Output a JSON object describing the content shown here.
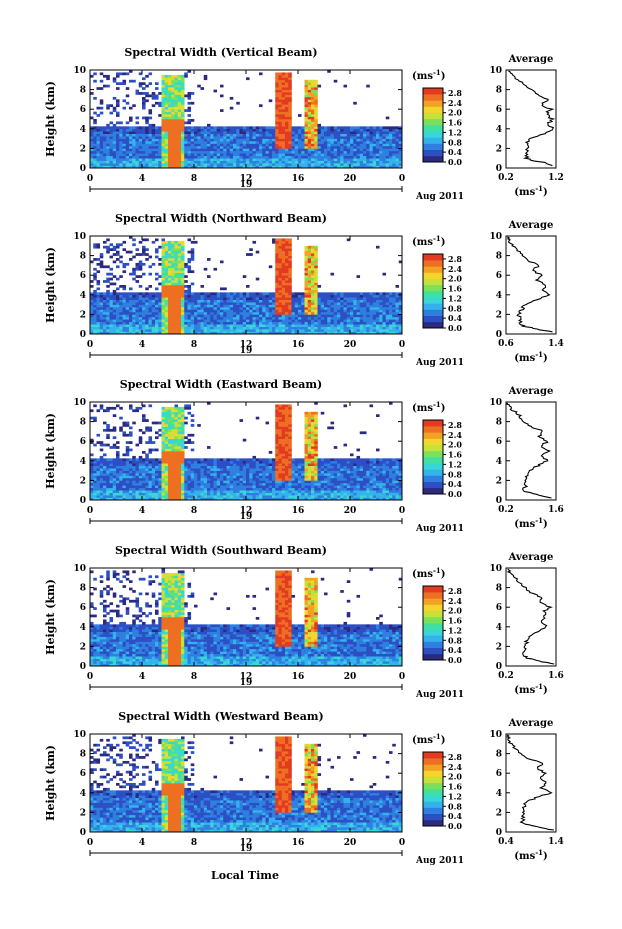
{
  "figure": {
    "xlabel": "Local Time",
    "date_label": "Aug 2011",
    "day_label": "19",
    "colorbar_unit": "(ms",
    "unit_exponent": "-1",
    "unit_close": ")",
    "avg_title": "Average",
    "avg_xlabel_open": "(ms",
    "avg_xlabel_close": ")",
    "colormap": [
      "#2b2a80",
      "#2d4fc4",
      "#2e7fe0",
      "#33b2ec",
      "#39d6d8",
      "#3fe0a0",
      "#7be05a",
      "#c6e23a",
      "#f2d62c",
      "#f4a225",
      "#ee6f22",
      "#e23b22"
    ]
  },
  "chart_data": [
    {
      "type": "heatmap",
      "title": "Spectral Width (Vertical Beam)",
      "ylabel": "Height (km)",
      "x_ticks": [
        "0",
        "4",
        "8",
        "12",
        "16",
        "20",
        "0"
      ],
      "y_ticks": [
        "0",
        "2",
        "4",
        "6",
        "8",
        "10"
      ],
      "xlim": [
        0,
        24
      ],
      "ylim": [
        0,
        10
      ],
      "colorbar_ticks": [
        "0.0",
        "0.4",
        "0.8",
        "1.2",
        "1.6",
        "2.0",
        "2.4",
        "2.8"
      ],
      "colorbar_range": [
        0,
        3.0
      ],
      "profile": {
        "type": "line",
        "title": "Average",
        "x_ticks": [
          "0.2",
          "1.2"
        ],
        "xlim": [
          0.2,
          1.2
        ],
        "y_ticks": [
          "0",
          "2",
          "4",
          "6",
          "8",
          "10"
        ],
        "ylim": [
          0,
          10
        ],
        "points": [
          [
            1.15,
            0.2
          ],
          [
            1.02,
            0.5
          ],
          [
            0.72,
            0.8
          ],
          [
            0.62,
            1.0
          ],
          [
            0.6,
            1.5
          ],
          [
            0.62,
            2.0
          ],
          [
            0.6,
            2.5
          ],
          [
            0.7,
            3.0
          ],
          [
            0.95,
            3.5
          ],
          [
            1.15,
            4.0
          ],
          [
            1.05,
            4.5
          ],
          [
            1.12,
            5.0
          ],
          [
            1.0,
            5.5
          ],
          [
            1.1,
            6.0
          ],
          [
            0.9,
            6.5
          ],
          [
            1.05,
            7.0
          ],
          [
            0.8,
            7.5
          ],
          [
            0.7,
            8.0
          ],
          [
            0.6,
            8.5
          ],
          [
            0.45,
            9.0
          ],
          [
            0.3,
            9.5
          ],
          [
            0.25,
            9.9
          ]
        ]
      }
    },
    {
      "type": "heatmap",
      "title": "Spectral Width (Northward Beam)",
      "ylabel": "Height (km)",
      "x_ticks": [
        "0",
        "4",
        "8",
        "12",
        "16",
        "20",
        "0"
      ],
      "y_ticks": [
        "0",
        "2",
        "4",
        "6",
        "8",
        "10"
      ],
      "xlim": [
        0,
        24
      ],
      "ylim": [
        0,
        10
      ],
      "colorbar_ticks": [
        "0.0",
        "0.4",
        "0.8",
        "1.2",
        "1.6",
        "2.0",
        "2.4",
        "2.8"
      ],
      "colorbar_range": [
        0,
        3.0
      ],
      "profile": {
        "type": "line",
        "title": "Average",
        "x_ticks": [
          "0.6",
          "1.4"
        ],
        "xlim": [
          0.6,
          1.4
        ],
        "y_ticks": [
          "0",
          "2",
          "4",
          "6",
          "8",
          "10"
        ],
        "ylim": [
          0,
          10
        ],
        "points": [
          [
            1.35,
            0.2
          ],
          [
            1.1,
            0.5
          ],
          [
            0.9,
            0.8
          ],
          [
            0.8,
            1.0
          ],
          [
            0.85,
            1.5
          ],
          [
            0.8,
            2.0
          ],
          [
            0.85,
            2.5
          ],
          [
            0.9,
            3.0
          ],
          [
            1.1,
            3.5
          ],
          [
            1.3,
            4.0
          ],
          [
            1.15,
            4.5
          ],
          [
            1.25,
            5.0
          ],
          [
            1.1,
            5.5
          ],
          [
            1.2,
            6.0
          ],
          [
            1.0,
            6.5
          ],
          [
            1.15,
            7.0
          ],
          [
            0.95,
            7.5
          ],
          [
            0.85,
            8.0
          ],
          [
            0.8,
            8.5
          ],
          [
            0.7,
            9.0
          ],
          [
            0.65,
            9.5
          ],
          [
            0.62,
            9.9
          ]
        ]
      }
    },
    {
      "type": "heatmap",
      "title": "Spectral Width (Eastward Beam)",
      "ylabel": "Height (km)",
      "x_ticks": [
        "0",
        "4",
        "8",
        "12",
        "16",
        "20",
        "0"
      ],
      "y_ticks": [
        "0",
        "2",
        "4",
        "6",
        "8",
        "10"
      ],
      "xlim": [
        0,
        24
      ],
      "ylim": [
        0,
        10
      ],
      "colorbar_ticks": [
        "0.0",
        "0.4",
        "0.8",
        "1.2",
        "1.6",
        "2.0",
        "2.4",
        "2.8"
      ],
      "colorbar_range": [
        0,
        3.0
      ],
      "profile": {
        "type": "line",
        "title": "Average",
        "x_ticks": [
          "0.2",
          "1.6"
        ],
        "xlim": [
          0.2,
          1.6
        ],
        "y_ticks": [
          "0",
          "2",
          "4",
          "6",
          "8",
          "10"
        ],
        "ylim": [
          0,
          10
        ],
        "points": [
          [
            1.5,
            0.2
          ],
          [
            1.1,
            0.5
          ],
          [
            0.8,
            0.8
          ],
          [
            0.7,
            1.0
          ],
          [
            0.75,
            1.5
          ],
          [
            0.7,
            2.0
          ],
          [
            0.8,
            2.5
          ],
          [
            0.85,
            3.0
          ],
          [
            1.1,
            3.5
          ],
          [
            1.35,
            4.0
          ],
          [
            1.2,
            4.5
          ],
          [
            1.4,
            5.0
          ],
          [
            1.2,
            5.5
          ],
          [
            1.35,
            6.0
          ],
          [
            1.1,
            6.5
          ],
          [
            1.25,
            7.0
          ],
          [
            0.9,
            7.5
          ],
          [
            0.7,
            8.0
          ],
          [
            0.6,
            8.5
          ],
          [
            0.45,
            9.0
          ],
          [
            0.3,
            9.5
          ],
          [
            0.25,
            9.9
          ]
        ]
      }
    },
    {
      "type": "heatmap",
      "title": "Spectral Width (Southward Beam)",
      "ylabel": "Height (km)",
      "x_ticks": [
        "0",
        "4",
        "8",
        "12",
        "16",
        "20",
        "0"
      ],
      "y_ticks": [
        "0",
        "2",
        "4",
        "6",
        "8",
        "10"
      ],
      "xlim": [
        0,
        24
      ],
      "ylim": [
        0,
        10
      ],
      "colorbar_ticks": [
        "0.0",
        "0.4",
        "0.8",
        "1.2",
        "1.6",
        "2.0",
        "2.4",
        "2.8"
      ],
      "colorbar_range": [
        0,
        3.0
      ],
      "profile": {
        "type": "line",
        "title": "Average",
        "x_ticks": [
          "0.2",
          "1.6"
        ],
        "xlim": [
          0.2,
          1.6
        ],
        "y_ticks": [
          "0",
          "2",
          "4",
          "6",
          "8",
          "10"
        ],
        "ylim": [
          0,
          10
        ],
        "points": [
          [
            1.5,
            0.2
          ],
          [
            1.15,
            0.5
          ],
          [
            0.8,
            0.8
          ],
          [
            0.72,
            1.0
          ],
          [
            0.7,
            1.5
          ],
          [
            0.75,
            2.0
          ],
          [
            0.78,
            2.5
          ],
          [
            0.85,
            3.0
          ],
          [
            1.05,
            3.5
          ],
          [
            1.35,
            4.0
          ],
          [
            1.2,
            4.5
          ],
          [
            1.3,
            5.0
          ],
          [
            1.25,
            5.5
          ],
          [
            1.45,
            6.0
          ],
          [
            1.15,
            6.5
          ],
          [
            1.2,
            7.0
          ],
          [
            0.9,
            7.5
          ],
          [
            0.75,
            8.0
          ],
          [
            0.6,
            8.5
          ],
          [
            0.45,
            9.0
          ],
          [
            0.32,
            9.5
          ],
          [
            0.25,
            9.9
          ]
        ]
      }
    },
    {
      "type": "heatmap",
      "title": "Spectral Width (Westward Beam)",
      "ylabel": "Height (km)",
      "x_ticks": [
        "0",
        "4",
        "8",
        "12",
        "16",
        "20",
        "0"
      ],
      "y_ticks": [
        "0",
        "2",
        "4",
        "6",
        "8",
        "10"
      ],
      "xlim": [
        0,
        24
      ],
      "ylim": [
        0,
        10
      ],
      "colorbar_ticks": [
        "0.0",
        "0.4",
        "0.8",
        "1.2",
        "1.6",
        "2.0",
        "2.4",
        "2.8"
      ],
      "colorbar_range": [
        0,
        3.0
      ],
      "profile": {
        "type": "line",
        "title": "Average",
        "x_ticks": [
          "0.4",
          "1.4"
        ],
        "xlim": [
          0.4,
          1.4
        ],
        "y_ticks": [
          "0",
          "2",
          "4",
          "6",
          "8",
          "10"
        ],
        "ylim": [
          0,
          10
        ],
        "points": [
          [
            1.35,
            0.2
          ],
          [
            1.05,
            0.5
          ],
          [
            0.8,
            0.8
          ],
          [
            0.72,
            1.0
          ],
          [
            0.75,
            1.5
          ],
          [
            0.72,
            2.0
          ],
          [
            0.76,
            2.5
          ],
          [
            0.8,
            3.0
          ],
          [
            1.0,
            3.5
          ],
          [
            1.3,
            4.0
          ],
          [
            1.1,
            4.5
          ],
          [
            1.2,
            5.0
          ],
          [
            1.05,
            5.5
          ],
          [
            1.2,
            6.0
          ],
          [
            1.0,
            6.5
          ],
          [
            1.15,
            7.0
          ],
          [
            0.85,
            7.5
          ],
          [
            0.7,
            8.0
          ],
          [
            0.6,
            8.5
          ],
          [
            0.5,
            9.0
          ],
          [
            0.45,
            9.5
          ],
          [
            0.42,
            9.9
          ]
        ]
      }
    }
  ]
}
